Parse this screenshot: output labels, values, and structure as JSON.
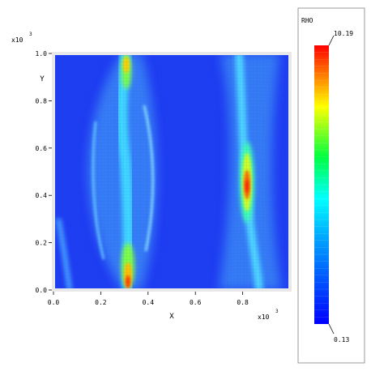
{
  "chart_data": {
    "type": "heatmap",
    "title": "",
    "xlabel": "X",
    "ylabel": "Y",
    "x_multiplier": "x10",
    "x_multiplier_exp": "3",
    "y_multiplier": "x10",
    "y_multiplier_exp": "3",
    "xlim": [
      0.0,
      1.0
    ],
    "ylim": [
      0.0,
      1.0
    ],
    "x_ticks": [
      "0.0",
      "0.2",
      "0.4",
      "0.6",
      "0.8"
    ],
    "y_ticks": [
      "0.0",
      "0.2",
      "0.4",
      "0.6",
      "0.8",
      "1.0"
    ],
    "colorbar": {
      "label": "RHO",
      "max_label": "10.19",
      "min_label": "0.13",
      "min": 0.13,
      "max": 10.19,
      "colormap": "blue-cyan-green-yellow-red"
    },
    "features": [
      {
        "name": "left-filament-core",
        "x_center_at_bottom": 0.32,
        "x_center_at_mid": 0.42,
        "x_center_at_top": 0.32,
        "peak_value": 10.19
      },
      {
        "name": "right-filament-core",
        "x_center_at_bottom": 0.8,
        "x_center_at_mid": 0.82,
        "x_center_at_top": 0.8,
        "peak_value": 9.5
      }
    ],
    "grid": false
  }
}
